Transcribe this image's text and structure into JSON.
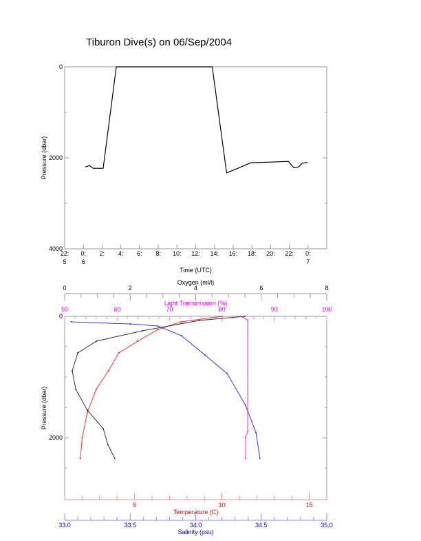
{
  "title": "Tiburon Dive(s) on 06/Sep/2004",
  "chart_data": [
    {
      "type": "line",
      "xlabel": "Time (UTC)",
      "ylabel": "Pressure (dbar)",
      "xlim": [
        "2004-09-05T22:00",
        "2004-09-07T02:00"
      ],
      "ylim": [
        4000,
        0
      ],
      "y_inverted": true,
      "x_ticks": [
        {
          "t": -2,
          "l1": "22:",
          "l2": "5"
        },
        {
          "t": 0,
          "l1": "0:",
          "l2": "6"
        },
        {
          "t": 2,
          "l1": "2:",
          "l2": ""
        },
        {
          "t": 4,
          "l1": "4:",
          "l2": ""
        },
        {
          "t": 6,
          "l1": "6:",
          "l2": ""
        },
        {
          "t": 8,
          "l1": "8:",
          "l2": ""
        },
        {
          "t": 10,
          "l1": "10:",
          "l2": ""
        },
        {
          "t": 12,
          "l1": "12:",
          "l2": ""
        },
        {
          "t": 14,
          "l1": "14:",
          "l2": ""
        },
        {
          "t": 16,
          "l1": "16:",
          "l2": ""
        },
        {
          "t": 18,
          "l1": "18:",
          "l2": ""
        },
        {
          "t": 20,
          "l1": "20:",
          "l2": ""
        },
        {
          "t": 22,
          "l1": "22:",
          "l2": ""
        },
        {
          "t": 24,
          "l1": "0:",
          "l2": "7"
        }
      ],
      "y_ticks": [
        "0",
        "2000",
        "4000"
      ],
      "series": [
        {
          "color": "#000000",
          "points": [
            [
              "2004-09-06T00:13",
              2200
            ],
            [
              "2004-09-06T00:40",
              2170
            ],
            [
              "2004-09-06T01:02",
              2230
            ],
            [
              "2004-09-06T02:07",
              2230
            ],
            [
              "2004-09-06T03:31",
              0
            ],
            [
              "2004-09-06T13:46",
              0
            ],
            [
              "2004-09-06T15:18",
              2330
            ],
            [
              "2004-09-06T16:02",
              2270
            ],
            [
              "2004-09-06T17:52",
              2110
            ],
            [
              "2004-09-06T20:26",
              2090
            ],
            [
              "2004-09-06T21:54",
              2080
            ],
            [
              "2004-09-06T22:29",
              2220
            ],
            [
              "2004-09-06T23:00",
              2200
            ],
            [
              "2004-09-06T23:22",
              2120
            ],
            [
              "2004-09-06T23:57",
              2100
            ]
          ]
        }
      ],
      "grid": false
    },
    {
      "type": "scatter",
      "ylabel": "Pressure (dbar)",
      "ylim": [
        3000,
        0
      ],
      "y_inverted": true,
      "y_ticks": [
        "0",
        "2000"
      ],
      "axes": {
        "oxygen": {
          "label": "Oxygen (ml/l)",
          "range": [
            0,
            8
          ],
          "ticks": [
            "0",
            "2",
            "4",
            "6",
            "8"
          ],
          "color": "#000000"
        },
        "light": {
          "label": "Light Transmission (%)",
          "range": [
            50,
            100
          ],
          "ticks": [
            "50",
            "60",
            "70",
            "80",
            "90",
            "100"
          ],
          "color": "#ff00ff"
        },
        "temperature": {
          "label": "Temperature (C)",
          "range": [
            1,
            16
          ],
          "ticks": [
            "5",
            "10",
            "15"
          ],
          "color": "#ff0000"
        },
        "salinity": {
          "label": "Salinity (psu)",
          "range": [
            33.0,
            35.0
          ],
          "ticks": [
            "33.0",
            "33.5",
            "34.0",
            "34.5",
            "35.0"
          ],
          "color": "#0000ff"
        }
      },
      "series": [
        {
          "axis": "temperature",
          "color": "#ff0000",
          "points": [
            [
              10,
              0
            ],
            [
              7.65,
              91
            ],
            [
              6.35,
              216
            ],
            [
              5.17,
              409
            ],
            [
              4.1,
              602
            ],
            [
              3.5,
              898
            ],
            [
              2.8,
              1205
            ],
            [
              2.3,
              1580
            ],
            [
              2.0,
              2000
            ],
            [
              1.9,
              2340
            ]
          ]
        },
        {
          "axis": "oxygen",
          "color": "#000000",
          "points": [
            [
              5.5,
              0
            ],
            [
              4.1,
              68
            ],
            [
              2.37,
              239
            ],
            [
              0.97,
              409
            ],
            [
              0.4,
              602
            ],
            [
              0.23,
              898
            ],
            [
              0.34,
              1205
            ],
            [
              0.69,
              1545
            ],
            [
              1.18,
              1852
            ],
            [
              1.32,
              2114
            ],
            [
              1.53,
              2340
            ]
          ]
        },
        {
          "axis": "salinity",
          "color": "#0000ff",
          "points": [
            [
              33.05,
              91
            ],
            [
              33.5,
              125
            ],
            [
              33.71,
              159
            ],
            [
              33.89,
              318
            ],
            [
              34.07,
              636
            ],
            [
              34.24,
              943
            ],
            [
              34.38,
              1466
            ],
            [
              34.46,
              1920
            ],
            [
              34.49,
              2340
            ]
          ]
        },
        {
          "axis": "light",
          "color": "#ff00ff",
          "points": [
            [
              83.6,
              0
            ],
            [
              84.9,
              60
            ],
            [
              84.9,
              1900
            ],
            [
              84.5,
              2000
            ],
            [
              84.5,
              2340
            ]
          ]
        }
      ],
      "grid": false
    }
  ]
}
